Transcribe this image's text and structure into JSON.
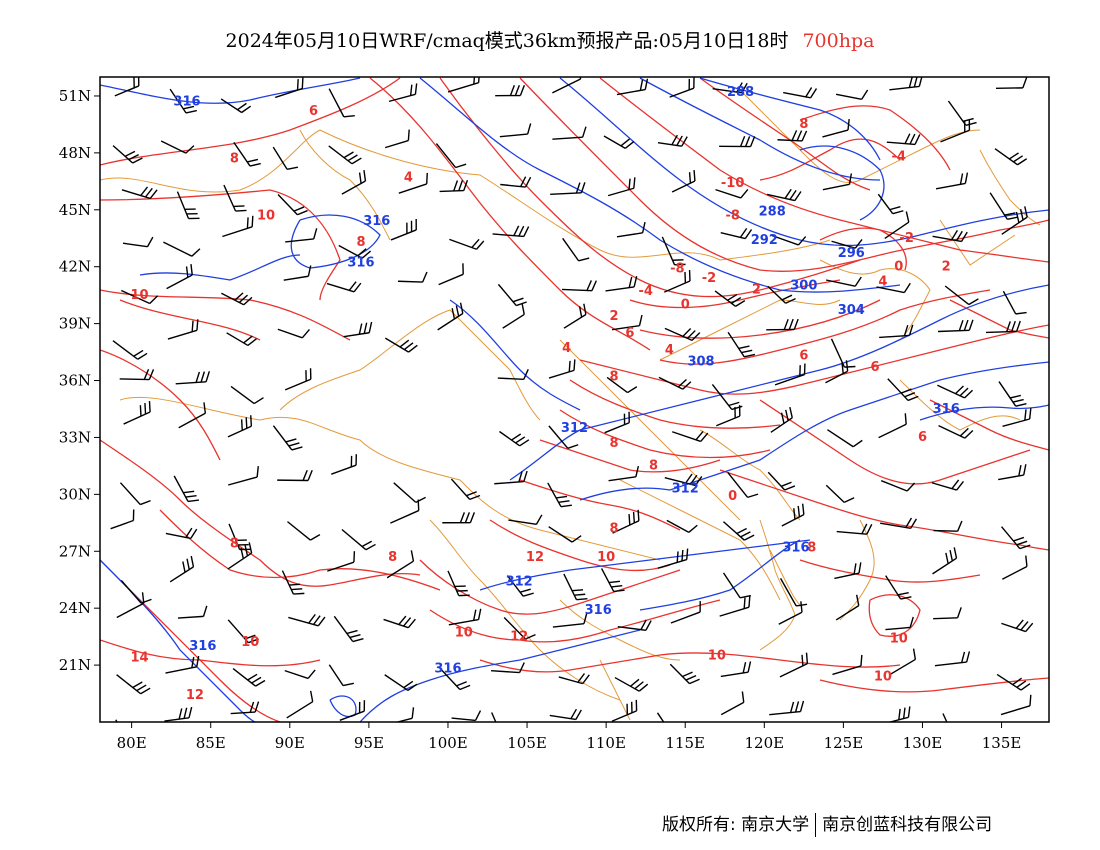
{
  "title": {
    "main": "2024年05月10日WRF/cmaq模式36km预报产品:05月10日18时",
    "level": "700hpa"
  },
  "axes": {
    "lon_labels": [
      "80E",
      "85E",
      "90E",
      "95E",
      "100E",
      "105E",
      "110E",
      "115E",
      "120E",
      "125E",
      "130E",
      "135E"
    ],
    "lat_labels": [
      "51N",
      "48N",
      "45N",
      "42N",
      "39N",
      "36N",
      "33N",
      "30N",
      "27N",
      "24N",
      "21N"
    ],
    "lon_range": [
      78,
      138
    ],
    "lat_range": [
      18,
      52
    ]
  },
  "contours": {
    "temperature_color": "#e8332e",
    "height_color": "#1f3fe0",
    "temperature_labels": [
      {
        "lon": 91.5,
        "lat": 50.0,
        "text": "6"
      },
      {
        "lon": 86.5,
        "lat": 47.5,
        "text": "8"
      },
      {
        "lon": 97.5,
        "lat": 46.5,
        "text": "4"
      },
      {
        "lon": 88.5,
        "lat": 44.5,
        "text": "10"
      },
      {
        "lon": 94.5,
        "lat": 43.1,
        "text": "8"
      },
      {
        "lon": 80.5,
        "lat": 40.3,
        "text": "10"
      },
      {
        "lon": 122.5,
        "lat": 49.3,
        "text": "8"
      },
      {
        "lon": 128.5,
        "lat": 47.6,
        "text": "-4"
      },
      {
        "lon": 118.0,
        "lat": 46.2,
        "text": "-10"
      },
      {
        "lon": 118.0,
        "lat": 44.5,
        "text": "-8"
      },
      {
        "lon": 129.0,
        "lat": 43.3,
        "text": "-2"
      },
      {
        "lon": 131.5,
        "lat": 41.8,
        "text": "2"
      },
      {
        "lon": 128.5,
        "lat": 41.8,
        "text": "0"
      },
      {
        "lon": 127.5,
        "lat": 41.0,
        "text": "4"
      },
      {
        "lon": 114.5,
        "lat": 41.7,
        "text": "-8"
      },
      {
        "lon": 116.5,
        "lat": 41.2,
        "text": "-2"
      },
      {
        "lon": 119.5,
        "lat": 40.6,
        "text": "2"
      },
      {
        "lon": 112.5,
        "lat": 40.5,
        "text": "-4"
      },
      {
        "lon": 115.0,
        "lat": 39.8,
        "text": "0"
      },
      {
        "lon": 110.5,
        "lat": 39.2,
        "text": "2"
      },
      {
        "lon": 111.5,
        "lat": 38.3,
        "text": "6"
      },
      {
        "lon": 107.5,
        "lat": 37.5,
        "text": "4"
      },
      {
        "lon": 114.0,
        "lat": 37.4,
        "text": "4"
      },
      {
        "lon": 122.5,
        "lat": 37.1,
        "text": "6"
      },
      {
        "lon": 127.0,
        "lat": 36.5,
        "text": "6"
      },
      {
        "lon": 110.5,
        "lat": 36.0,
        "text": "8"
      },
      {
        "lon": 110.5,
        "lat": 32.5,
        "text": "8"
      },
      {
        "lon": 113.0,
        "lat": 31.3,
        "text": "8"
      },
      {
        "lon": 130.0,
        "lat": 32.8,
        "text": "6"
      },
      {
        "lon": 118.0,
        "lat": 29.7,
        "text": "0"
      },
      {
        "lon": 86.5,
        "lat": 27.2,
        "text": "8"
      },
      {
        "lon": 96.5,
        "lat": 26.5,
        "text": "8"
      },
      {
        "lon": 105.5,
        "lat": 26.5,
        "text": "12"
      },
      {
        "lon": 110.0,
        "lat": 26.5,
        "text": "10"
      },
      {
        "lon": 110.5,
        "lat": 28.0,
        "text": "8"
      },
      {
        "lon": 101.0,
        "lat": 22.5,
        "text": "10"
      },
      {
        "lon": 104.5,
        "lat": 22.3,
        "text": "12"
      },
      {
        "lon": 87.5,
        "lat": 22.0,
        "text": "10"
      },
      {
        "lon": 80.5,
        "lat": 21.2,
        "text": "14"
      },
      {
        "lon": 84.0,
        "lat": 19.2,
        "text": "12"
      },
      {
        "lon": 117.0,
        "lat": 21.3,
        "text": "10"
      },
      {
        "lon": 128.5,
        "lat": 22.2,
        "text": "10"
      },
      {
        "lon": 127.5,
        "lat": 20.2,
        "text": "10"
      },
      {
        "lon": 123.0,
        "lat": 27.0,
        "text": "8"
      }
    ],
    "height_labels": [
      {
        "lon": 83.5,
        "lat": 50.5,
        "text": "316"
      },
      {
        "lon": 95.5,
        "lat": 44.2,
        "text": "316"
      },
      {
        "lon": 94.5,
        "lat": 42.0,
        "text": "316"
      },
      {
        "lon": 118.5,
        "lat": 51.0,
        "text": "288"
      },
      {
        "lon": 120.5,
        "lat": 44.7,
        "text": "288"
      },
      {
        "lon": 120.0,
        "lat": 43.2,
        "text": "292"
      },
      {
        "lon": 125.5,
        "lat": 42.5,
        "text": "296"
      },
      {
        "lon": 122.5,
        "lat": 40.8,
        "text": "300"
      },
      {
        "lon": 125.5,
        "lat": 39.5,
        "text": "304"
      },
      {
        "lon": 116.0,
        "lat": 36.8,
        "text": "308"
      },
      {
        "lon": 108.0,
        "lat": 33.3,
        "text": "312"
      },
      {
        "lon": 115.0,
        "lat": 30.1,
        "text": "312"
      },
      {
        "lon": 104.5,
        "lat": 25.2,
        "text": "312"
      },
      {
        "lon": 109.5,
        "lat": 23.7,
        "text": "316"
      },
      {
        "lon": 122.0,
        "lat": 27.0,
        "text": "316"
      },
      {
        "lon": 131.5,
        "lat": 34.3,
        "text": "316"
      },
      {
        "lon": 84.5,
        "lat": 21.8,
        "text": "316"
      },
      {
        "lon": 100.0,
        "lat": 20.6,
        "text": "316"
      }
    ]
  },
  "footer": {
    "left": "版权所有: 南京大学",
    "right": "南京创蓝科技有限公司"
  }
}
